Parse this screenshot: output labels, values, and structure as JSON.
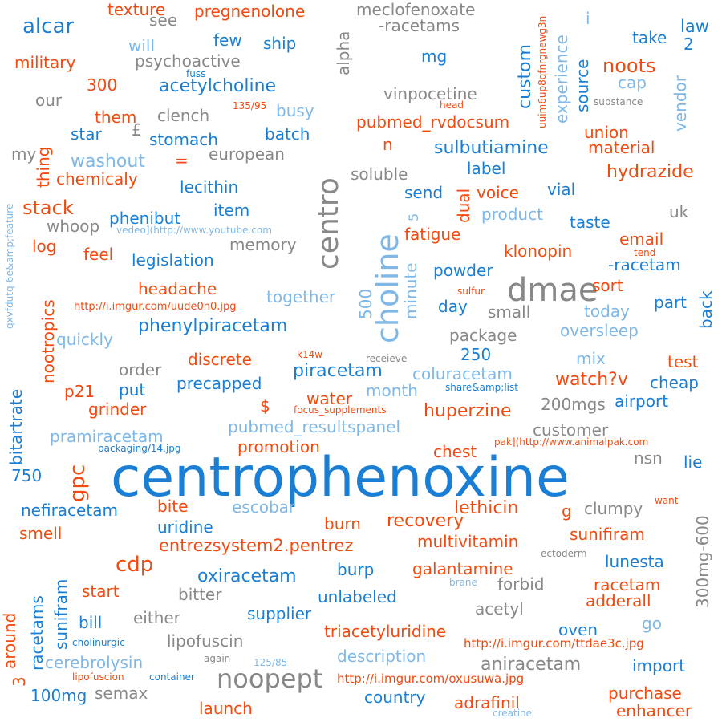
{
  "palette": {
    "c0": "#1a7fd4",
    "c1": "#f24a10",
    "c2": "#888888",
    "c3": "#7fb8e6"
  },
  "words": {
    "w000": "centrophenoxine",
    "w001": "choline",
    "w002": "dmae",
    "w003": "centro",
    "w004": "noopept",
    "w005": "acetylcholine",
    "w006": "piracetam",
    "w007": "washout",
    "w008": "gpc",
    "w009": "alcar",
    "w010": "sulbutiamine",
    "w011": "phenylpiracetam",
    "w012": "aniracetam",
    "w013": "oxiracetam",
    "w014": "entrezsystem2.pentrez",
    "w015": "pubmed_resultspanel",
    "w016": "pubmed_rvdocsum",
    "w017": "huperzine",
    "w018": "hydrazide",
    "w019": "cdp",
    "w020": "noots",
    "w021": "custom",
    "w022": "texture",
    "w023": "pregnenolone",
    "w024": "meclofenoxate",
    "w025": "-racetams",
    "w026": "law",
    "w027": "ship",
    "w028": "few",
    "w029": "alpha",
    "w030": "military",
    "w031": "psychoactive",
    "w032": "will",
    "w033": "see",
    "w034": "fuss",
    "w035": "mg",
    "w036": "experience",
    "w037": "source",
    "w038": "vendor",
    "w039": "take",
    "w040": "2",
    "w041": "i",
    "w042": "uuim6up8qfnrgnewg3n",
    "w043": "cap",
    "w044": "300",
    "w045": "our",
    "w046": "them",
    "w047": "clench",
    "w048": "135/95",
    "w049": "busy",
    "w050": "vinpocetine",
    "w051": "head",
    "w052": "substance",
    "w053": "star",
    "w054": "£",
    "w055": "stomach",
    "w056": "batch",
    "w057": "union",
    "w058": "my",
    "w059": "thing",
    "w060": "european",
    "w061": "n",
    "w062": "material",
    "w063": "=",
    "w064": "chemicaly",
    "w065": "soluble",
    "w066": "label",
    "w067": "lecithin",
    "w068": "send",
    "w069": "dual",
    "w070": "voice",
    "w071": "vial",
    "w072": "stack",
    "w073": "item",
    "w074": "5",
    "w075": "product",
    "w076": "taste",
    "w077": "uk",
    "w078": "whoop",
    "w079": "phenibut",
    "w080": "qxvfdutq-6e&amp;feature",
    "w081": "vedeo](http://www.youtube.com",
    "w082": "fatigue",
    "w083": "email",
    "w084": "log",
    "w085": "memory",
    "w086": "tend",
    "w087": "feel",
    "w088": "legislation",
    "w089": "powder",
    "w090": "klonopin",
    "w091": "-racetam",
    "w092": "nootropics",
    "w093": "headache",
    "w094": "500",
    "w095": "minute",
    "w096": "sort",
    "w097": "sulfur",
    "w098": "http://i.imgur.com/uude0n0.jpg",
    "w099": "together",
    "w100": "day",
    "w101": "small",
    "w102": "part",
    "w103": "today",
    "w104": "back",
    "w105": "quickly",
    "w106": "package",
    "w107": "oversleep",
    "w108": "bitartrate",
    "w109": "250",
    "w110": "mix",
    "w111": "discrete",
    "w112": "k14w",
    "w113": "receieve",
    "w114": "test",
    "w115": "order",
    "w116": "coluracetam",
    "w117": "watch?v",
    "w118": "cheap",
    "w119": "p21",
    "w120": "put",
    "w121": "precapped",
    "w122": "month",
    "w123": "share&amp;list",
    "w124": "$",
    "w125": "water",
    "w126": "airport",
    "w127": "200mgs",
    "w128": "grinder",
    "w129": "focus_supplements",
    "w130": "customer",
    "w131": "pramiracetam",
    "w132": "packaging/14.jpg",
    "w133": "promotion",
    "w134": "chest",
    "w135": "pak](http://www.animalpak.com",
    "w136": "nsn",
    "w137": "lie",
    "w138": "750",
    "w139": "300mg-600",
    "w140": "nefiracetam",
    "w141": "bite",
    "w142": "escobar",
    "w143": "lethicin",
    "w144": "g",
    "w145": "clumpy",
    "w146": "want",
    "w147": "smell",
    "w148": "uridine",
    "w149": "burn",
    "w150": "recovery",
    "w151": "sunifiram",
    "w152": "multivitamin",
    "w153": "ectoderm",
    "w154": "lunesta",
    "w155": "racetams",
    "w156": "sunifram",
    "w157": "burp",
    "w158": "galantamine",
    "w159": "brane",
    "w160": "forbid",
    "w161": "racetam",
    "w162": "start",
    "w163": "bitter",
    "w164": "unlabeled",
    "w165": "adderall",
    "w166": "around",
    "w167": "acetyl",
    "w168": "bill",
    "w169": "either",
    "w170": "supplier",
    "w171": "go",
    "w172": "oven",
    "w173": "triacetyluridine",
    "w174": "cholinurgic",
    "w175": "lipofuscin",
    "w176": "http://i.imgur.com/ttdae3c.jpg",
    "w177": "again",
    "w178": "3",
    "w179": "cerebrolysin",
    "w180": "125/85",
    "w181": "description",
    "w182": "import",
    "w183": "100mg",
    "w184": "lipofuscion",
    "w185": "container",
    "w186": "semax",
    "w187": "http://i.imgur.com/oxusuwa.jpg",
    "w188": "country",
    "w189": "purchase",
    "w190": "launch",
    "w191": "adrafinil",
    "w192": "enhancer",
    "w193": "creatine"
  }
}
